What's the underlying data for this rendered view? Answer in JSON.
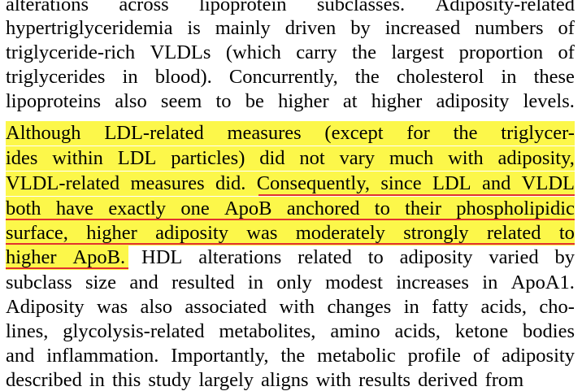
{
  "document": {
    "lines": [
      "alterations across lipoprotein subclasses. Adiposity-related",
      "hypertriglyceridemia is mainly driven by increased numbers of",
      "triglyceride-rich VLDLs (which carry the largest proportion of",
      "triglycerides in blood). Concurrently, the cholesterol in these",
      "lipoproteins also seem to be higher at higher adiposity levels.",
      "Although LDL-related measures (except for the triglycer-",
      "ides within LDL particles) did not vary much with adiposity,",
      "VLDL-related measures did. Consequently, since LDL and VLDL",
      "both have exactly one ApoB anchored to their phospholipidic",
      "surface, higher adiposity was moderately strongly related to",
      "higher ApoB. HDL alterations related to adiposity varied by",
      "subclass size and resulted in only modest increases in ApoA1.",
      "Adiposity was also associated with changes in fatty acids, cho-",
      "lines, glycolysis-related metabolites, amino acids, ketone bodies",
      "and inflammation. Importantly, the metabolic profile of adiposity",
      "described in this study largely aligns with results derived from"
    ]
  },
  "highlight_color": "#fcf74a",
  "underline_color": "#e1322f"
}
